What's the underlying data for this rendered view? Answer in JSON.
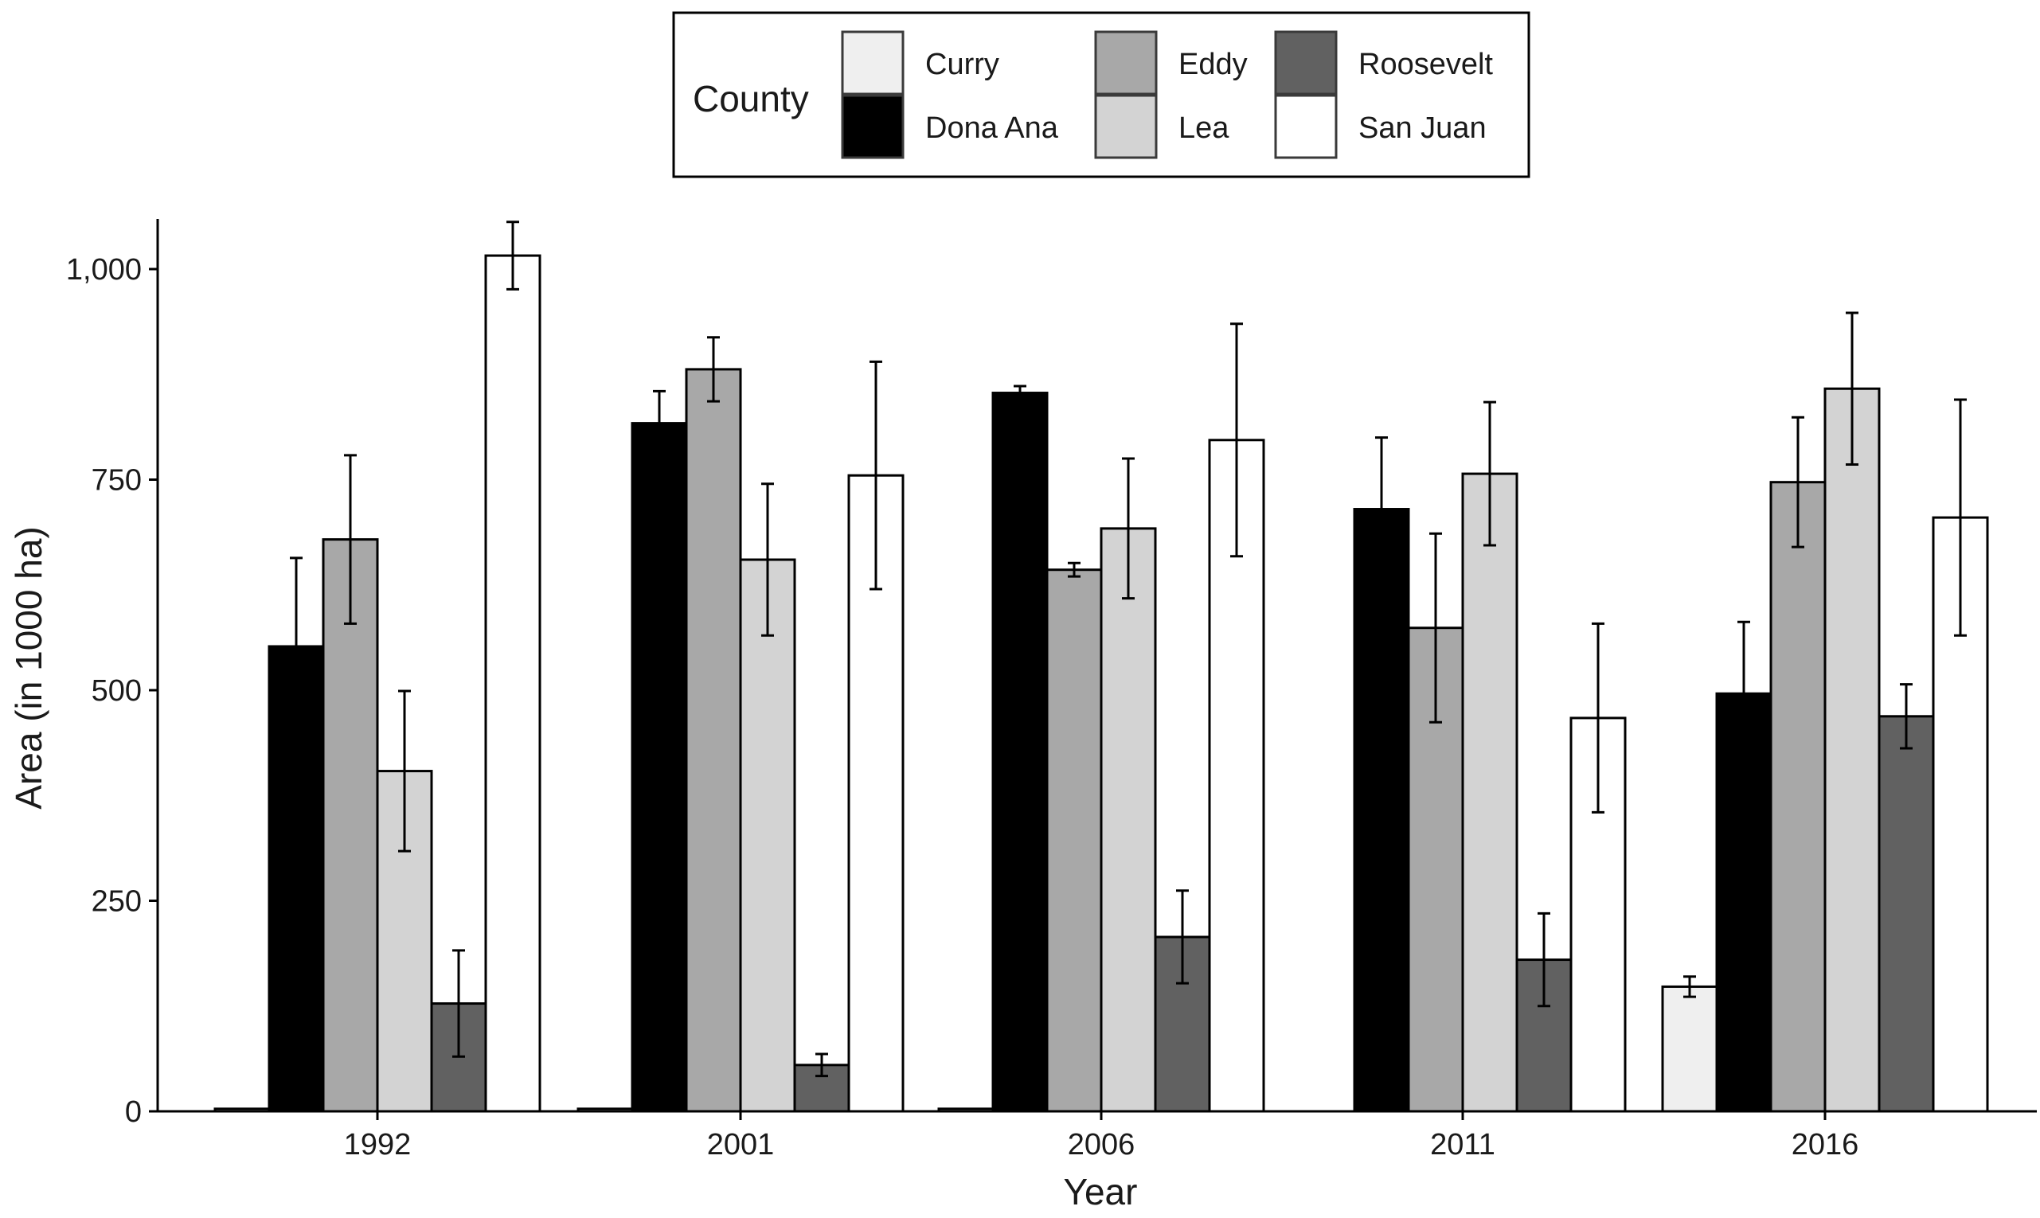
{
  "chart_data": {
    "type": "bar",
    "title": "",
    "xlabel": "Year",
    "ylabel": "Area (in 1000 ha)",
    "ylim": [
      0,
      1060
    ],
    "yticks": [
      0,
      250,
      500,
      750,
      1000
    ],
    "ytick_labels": [
      "0",
      "250",
      "500",
      "750",
      "1,000"
    ],
    "grid": false,
    "legend": {
      "title": "County",
      "placement": "top-center"
    },
    "categories": [
      "1992",
      "2001",
      "2006",
      "2011",
      "2016"
    ],
    "series": [
      {
        "name": "Curry",
        "color": "#efefef",
        "values": [
          3,
          3,
          3,
          null,
          148
        ],
        "errors": [
          null,
          null,
          null,
          null,
          12
        ]
      },
      {
        "name": "Dona Ana",
        "color": "#000000",
        "values": [
          552,
          817,
          853,
          715,
          496
        ],
        "errors": [
          105,
          38,
          8,
          85,
          85
        ]
      },
      {
        "name": "Eddy",
        "color": "#a8a8a8",
        "values": [
          679,
          881,
          643,
          574,
          747
        ],
        "errors": [
          100,
          38,
          8,
          112,
          77
        ]
      },
      {
        "name": "Lea",
        "color": "#d3d3d3",
        "values": [
          404,
          655,
          692,
          757,
          858
        ],
        "errors": [
          95,
          90,
          83,
          85,
          90
        ]
      },
      {
        "name": "Roosevelt",
        "color": "#616161",
        "values": [
          128,
          55,
          207,
          180,
          469
        ],
        "errors": [
          63,
          13,
          55,
          55,
          38
        ]
      },
      {
        "name": "San Juan",
        "color": "#ffffff",
        "values": [
          1016,
          755,
          797,
          467,
          705
        ],
        "errors": [
          40,
          135,
          138,
          112,
          140
        ]
      }
    ]
  }
}
